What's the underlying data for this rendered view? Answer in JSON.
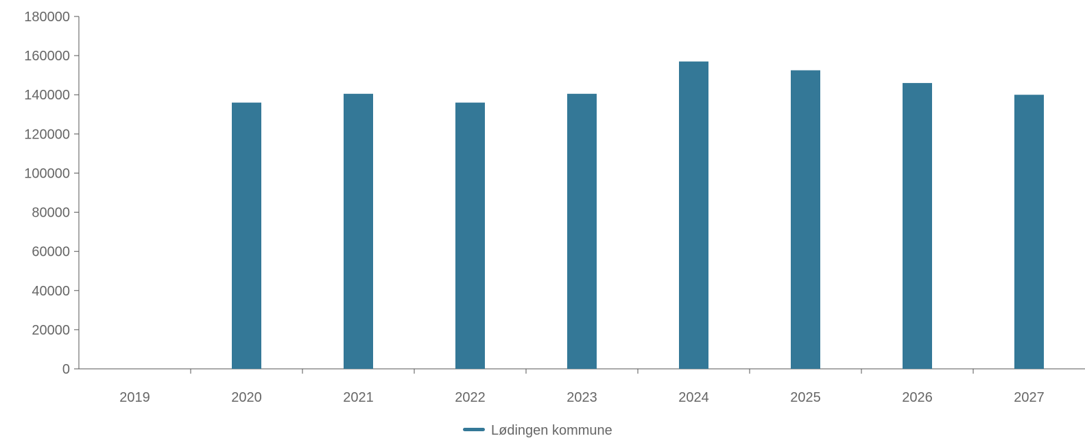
{
  "chart_data": {
    "type": "bar",
    "title": "",
    "xlabel": "",
    "ylabel": "",
    "categories": [
      "2019",
      "2020",
      "2021",
      "2022",
      "2023",
      "2024",
      "2025",
      "2026",
      "2027"
    ],
    "series": [
      {
        "name": "Lødingen kommune",
        "color": "#347897",
        "values": [
          0,
          136000,
          140500,
          136000,
          140500,
          157000,
          152500,
          146000,
          140000
        ]
      }
    ],
    "ylim": [
      0,
      180000
    ],
    "yticks": [
      "0",
      "20000",
      "40000",
      "60000",
      "80000",
      "100000",
      "120000",
      "140000",
      "160000",
      "180000"
    ],
    "grid": false,
    "legend": "bottom-center"
  }
}
